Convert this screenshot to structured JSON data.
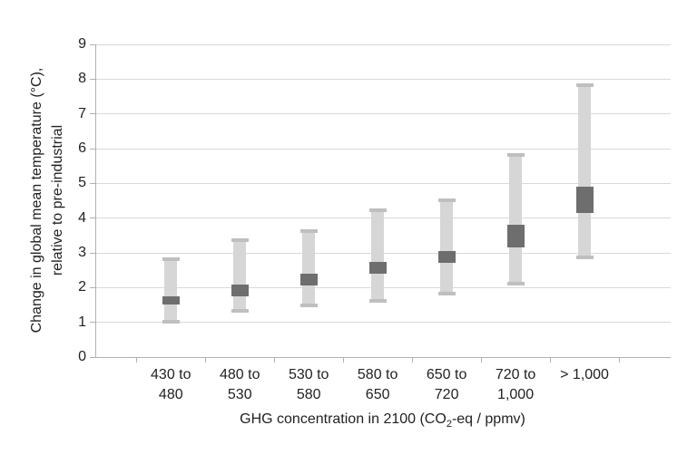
{
  "chart_data": {
    "type": "bar",
    "subtype": "floating-range-bars",
    "title": "",
    "xlabel": "GHG concentration in 2100 (CO2-eq / ppmv)",
    "xlabel_parts": {
      "prefix": "GHG concentration in 2100 (CO",
      "sub": "2",
      "suffix": "-eq / ppmv)"
    },
    "ylabel": "Change in global mean temperature (°C), relative to pre-industrial",
    "ylabel_lines": [
      "Change in global mean temperature (°C),",
      "relative to pre-industrial"
    ],
    "categories": [
      "430 to 480",
      "480 to 530",
      "530 to 580",
      "580 to 650",
      "650 to 720",
      "720 to 1,000",
      "> 1,000"
    ],
    "category_label_lines": [
      [
        "430 to",
        "480"
      ],
      [
        "480 to",
        "530"
      ],
      [
        "530 to",
        "580"
      ],
      [
        "580 to",
        "650"
      ],
      [
        "650 to",
        "720"
      ],
      [
        "720 to",
        "1,000"
      ],
      [
        "> 1,000"
      ]
    ],
    "series": [
      {
        "name": "Full range (light gray)",
        "low": [
          1.0,
          1.3,
          1.45,
          1.6,
          1.8,
          2.1,
          2.85
        ],
        "high": [
          2.85,
          3.4,
          3.65,
          4.25,
          4.55,
          5.85,
          7.85
        ]
      },
      {
        "name": "Central estimate band (dark gray)",
        "low": [
          1.5,
          1.75,
          2.05,
          2.4,
          2.7,
          3.15,
          4.15
        ],
        "high": [
          1.75,
          2.1,
          2.4,
          2.75,
          3.05,
          3.8,
          4.9
        ]
      }
    ],
    "ylim": [
      0,
      9
    ],
    "yticks": [
      0,
      1,
      2,
      3,
      4,
      5,
      6,
      7,
      8,
      9
    ],
    "grid": true,
    "legend": "none"
  },
  "colors": {
    "background": "#ffffff",
    "range_bar": "#d6d6d6",
    "range_cap": "#bfbfbf",
    "central_band": "#6e6e6e",
    "gridline": "#d9d9d9",
    "axis": "#b0b0b0",
    "text": "#222222"
  }
}
